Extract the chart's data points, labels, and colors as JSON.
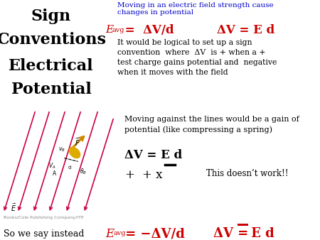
{
  "bg_color": "#ffffff",
  "title_lines": [
    "Sign",
    "Conventions",
    "Electrical",
    "Potential"
  ],
  "title_color": "#000000",
  "title_fontsize": 16,
  "blue_heading": "Moving in an electric field strength cause\nchanges in potential",
  "blue_color": "#0000cc",
  "red_color": "#cc0000",
  "black_color": "#000000",
  "body_text": "It would be logical to set up a sign\nconvention  where  ΔV  is + when a +\ntest charge gains potential and  negative\nwhen it moves with the field",
  "diagram_text1": "Moving against the lines would be a gain of\npotential (like compressing a spring)",
  "eq2": "ΔV = E d",
  "eq3_right": "This doesn’t work!!",
  "bottom_left": "So we say instead",
  "publisher": "Books/Cole Publishing Company/ITP",
  "line_color": "#cc0044"
}
